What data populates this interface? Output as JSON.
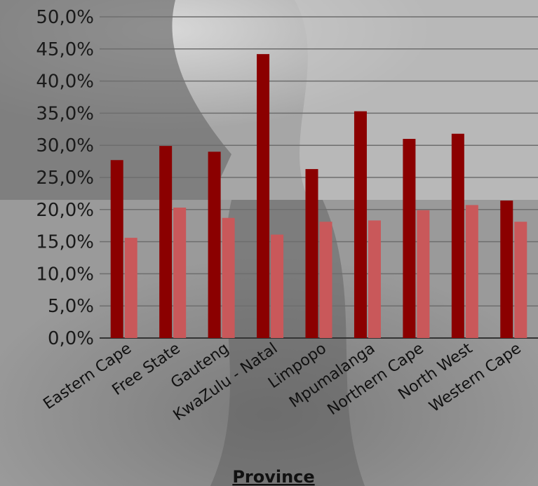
{
  "chart_data": {
    "type": "bar",
    "xlabel": "Province",
    "ylabel": "",
    "ylim": [
      0,
      50
    ],
    "yticks": [
      "0,0%",
      "5,0%",
      "10,0%",
      "15,0%",
      "20,0%",
      "25,0%",
      "30,0%",
      "35,0%",
      "40,0%",
      "45,0%",
      "50,0%"
    ],
    "grid": true,
    "categories": [
      "Eastern Cape",
      "Free State",
      "Gauteng",
      "KwaZulu - Natal",
      "Limpopo",
      "Mpumalanga",
      "Northern Cape",
      "North West",
      "Western Cape"
    ],
    "series": [
      {
        "values": [
          27.7,
          29.9,
          29.0,
          44.2,
          26.3,
          35.3,
          31.0,
          31.8,
          21.4
        ]
      },
      {
        "values": [
          15.6,
          20.3,
          18.7,
          16.1,
          18.1,
          18.3,
          19.9,
          20.7,
          18.1
        ]
      }
    ],
    "colors": {
      "series1": "#8b0000",
      "series2": "#c9585a",
      "background": "#8f8f8f",
      "grid": "#6e6e6e"
    }
  }
}
